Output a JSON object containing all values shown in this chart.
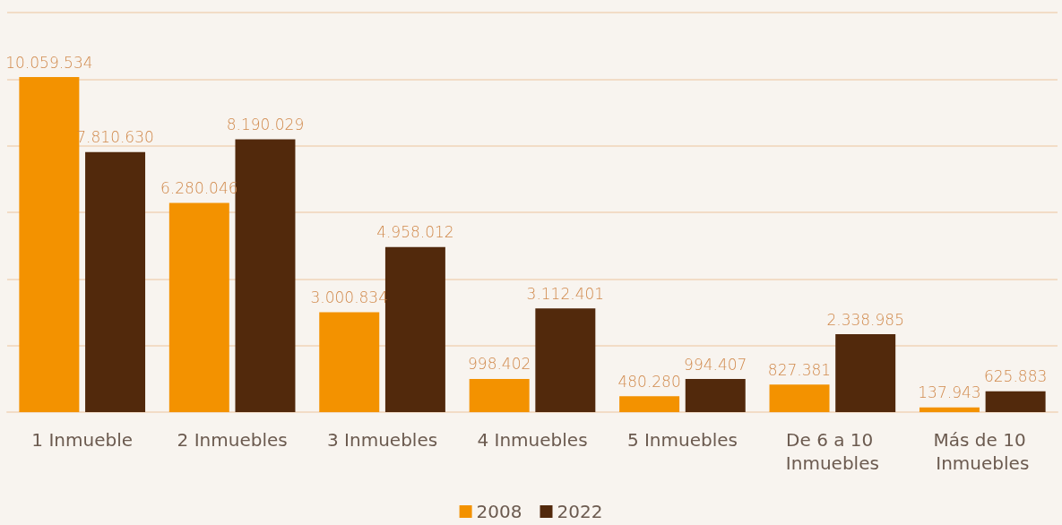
{
  "chart_data": {
    "type": "bar",
    "categories": [
      "1 Inmueble",
      "2 Inmuebles",
      "3 Inmuebles",
      "4 Inmuebles",
      "5 Inmuebles",
      "De 6 a 10 Inmuebles",
      "Más de 10 Inmuebles"
    ],
    "series": [
      {
        "name": "2008",
        "color": "#f39200",
        "values": [
          10059534,
          6280046,
          3000834,
          998402,
          480280,
          827381,
          137943
        ],
        "value_labels": [
          "10.059.534",
          "6.280.046",
          "3.000.834",
          "998.402",
          "480.280",
          "827.381",
          "137.943"
        ]
      },
      {
        "name": "2022",
        "color": "#52290c",
        "values": [
          7810630,
          8190029,
          4958012,
          3112401,
          994407,
          2338985,
          625883
        ],
        "value_labels": [
          "7.810.630",
          "8.190.029",
          "4.958.012",
          "3.112.401",
          "994.407",
          "2.338.985",
          "625.883"
        ]
      }
    ],
    "ylim": [
      0,
      12000000
    ],
    "yticks": [
      {
        "value": 0,
        "label": null
      },
      {
        "value": 2000000,
        "label": null
      },
      {
        "value": 4000000,
        "label": null
      },
      {
        "value": 6000000,
        "label": null
      },
      {
        "value": 8000000,
        "label": null
      },
      {
        "value": 10000000,
        "label": null
      },
      {
        "value": 12000000,
        "label": null
      }
    ],
    "tick_labels": "x",
    "grid": "y",
    "legend": "bottom"
  }
}
